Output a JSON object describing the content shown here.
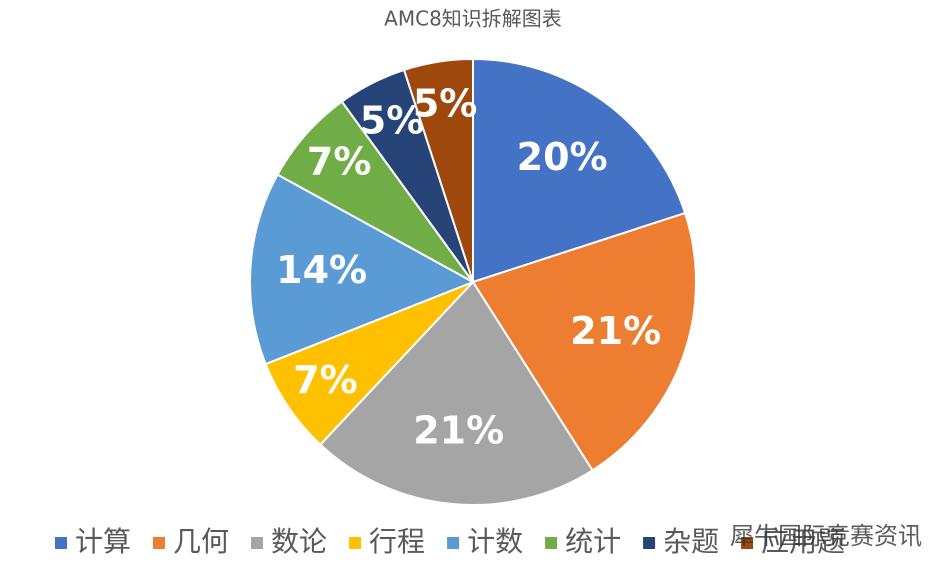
{
  "chart_data": {
    "type": "pie",
    "title": "AMC8知识拆解图表",
    "categories": [
      "计算",
      "几何",
      "数论",
      "行程",
      "计数",
      "统计",
      "杂题",
      "应用题"
    ],
    "values": [
      20,
      21,
      21,
      7,
      14,
      7,
      5,
      5
    ],
    "value_labels": [
      "20%",
      "21%",
      "21%",
      "7%",
      "14%",
      "7%",
      "5%",
      "5%"
    ],
    "colors": [
      "#4472c4",
      "#ed7d31",
      "#a5a5a5",
      "#ffc000",
      "#5b9bd5",
      "#70ad47",
      "#264478",
      "#9e480e"
    ],
    "legend": "bottom"
  },
  "watermark": "犀牛国际竞赛资讯"
}
